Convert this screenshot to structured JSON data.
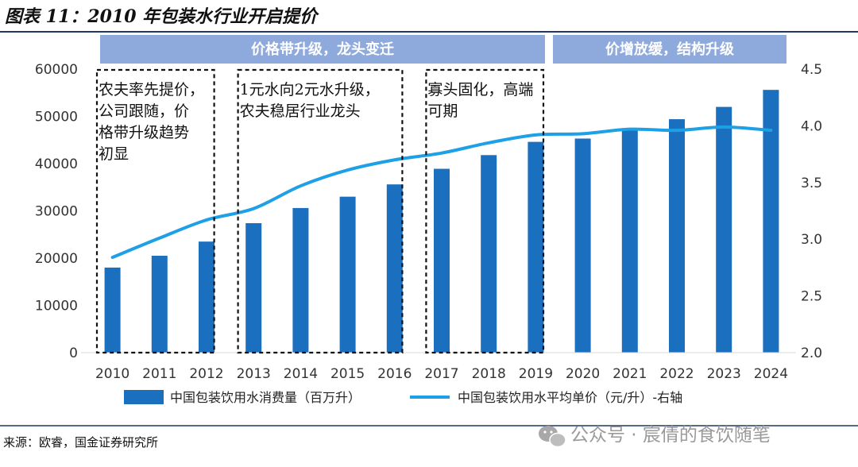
{
  "figure": {
    "title": "图表 11：2010 年包装水行业开启提价",
    "source": "来源：欧睿，国金证券研究所",
    "watermark": "公众号 · 宸倩的食饮随笔"
  },
  "bands": [
    {
      "label": "价格带升级，龙头变迁",
      "from": "2010",
      "to": "2019"
    },
    {
      "label": "价增放缓，结构升级",
      "from": "2020",
      "to": "2024"
    }
  ],
  "annotations": [
    {
      "lines": [
        "农夫率先提价，",
        "公司跟随，价",
        "格带升级趋势",
        "初显"
      ],
      "from": "2010",
      "to": "2012"
    },
    {
      "lines": [
        "1元水向2元水升级，",
        "农夫稳居行业龙头"
      ],
      "from": "2013",
      "to": "2016"
    },
    {
      "lines": [
        "寡头固化，高端",
        "可期"
      ],
      "from": "2017",
      "to": "2019"
    }
  ],
  "chart_data": {
    "type": "bar",
    "categories": [
      "2010",
      "2011",
      "2012",
      "2013",
      "2014",
      "2015",
      "2016",
      "2017",
      "2018",
      "2019",
      "2020",
      "2021",
      "2022",
      "2023",
      "2024"
    ],
    "series": [
      {
        "name": "中国包装饮用水消费量（百万升）",
        "type": "bar",
        "axis": "left",
        "color": "#1a6fbf",
        "values": [
          18000,
          20500,
          23500,
          27400,
          30600,
          33000,
          35600,
          38900,
          41800,
          44600,
          45300,
          47500,
          49400,
          52000,
          55600
        ]
      },
      {
        "name": "中国包装饮用水平均单价（元/升）-右轴",
        "type": "line",
        "axis": "right",
        "color": "#1ea0e6",
        "values": [
          2.84,
          3.01,
          3.17,
          3.27,
          3.47,
          3.61,
          3.7,
          3.76,
          3.85,
          3.92,
          3.93,
          3.97,
          3.96,
          3.99,
          3.96
        ]
      }
    ],
    "yLeft": {
      "min": 0,
      "max": 60000,
      "ticks": [
        "0",
        "10000",
        "20000",
        "30000",
        "40000",
        "50000",
        "60000"
      ]
    },
    "yRight": {
      "min": 2.0,
      "max": 4.5,
      "ticks": [
        "2.0",
        "2.5",
        "3.0",
        "3.5",
        "4.0",
        "4.5"
      ]
    },
    "legend_position": "bottom",
    "grid": false
  }
}
